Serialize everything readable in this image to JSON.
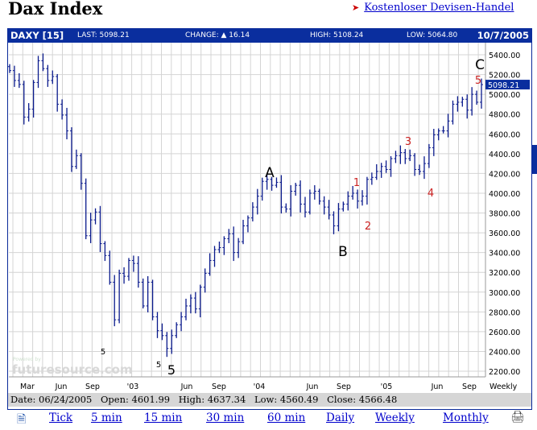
{
  "page": {
    "title": "Dax Index",
    "promo_link": "Kostenloser Devisen-Handel"
  },
  "quote_bar": {
    "symbol": "DAXY [15]",
    "last": "LAST: 5098.21",
    "change": "CHANGE: ▲ 16.14",
    "high": "HIGH: 5108.24",
    "low": "LOW: 5064.80",
    "date": "10/7/2005"
  },
  "info_bar": {
    "date": "Date: 06/24/2005",
    "open": "Open: 4601.99",
    "high": "High: 4637.34",
    "low": "Low: 4560.49",
    "close": "Close: 4566.48"
  },
  "links": [
    "Tick",
    "5 min",
    "15 min",
    "30 min",
    "60 min",
    "Daily",
    "Weekly",
    "Monthly"
  ],
  "icons": {
    "left": "email-page-icon",
    "right": "printer-icon"
  },
  "watermark": "futuresource.com",
  "watermark_small": "Powered by",
  "colors": {
    "bars": "#0a1a8c",
    "header": "#0a2e9e",
    "annotation_red": "#cc2222",
    "grid": "#d4d4d4"
  },
  "chart_data": {
    "type": "ohlc-bar",
    "interval_label": "Weekly",
    "ylim": [
      2200,
      5400
    ],
    "grid": true,
    "y_ticks": [
      "5400.00",
      "5200.00",
      "5000.00",
      "4800.00",
      "4600.00",
      "4400.00",
      "4200.00",
      "4000.00",
      "3800.00",
      "3600.00",
      "3400.00",
      "3200.00",
      "3000.00",
      "2800.00",
      "2600.00",
      "2400.00",
      "2200.00"
    ],
    "x_ticks": [
      "Mar",
      "Jun",
      "Sep",
      "'03",
      "Jun",
      "Sep",
      "'04",
      "Jun",
      "Sep",
      "'05",
      "Jun",
      "Sep"
    ],
    "last_price_label": "5098.21",
    "closes": [
      5240,
      5140,
      5100,
      4770,
      4850,
      5120,
      5340,
      5260,
      5140,
      5180,
      4900,
      4790,
      4630,
      4270,
      4380,
      4100,
      3570,
      3730,
      3810,
      3490,
      3370,
      3100,
      2720,
      3190,
      3160,
      3320,
      3290,
      3100,
      2860,
      3100,
      2750,
      2610,
      2560,
      2430,
      2560,
      2670,
      2750,
      2860,
      2940,
      2830,
      3050,
      3190,
      3320,
      3430,
      3450,
      3540,
      3590,
      3400,
      3510,
      3670,
      3750,
      3860,
      3970,
      4120,
      4140,
      4080,
      4110,
      3860,
      3840,
      4020,
      4080,
      3890,
      3810,
      4000,
      4020,
      3920,
      3860,
      3780,
      3670,
      3840,
      3890,
      3970,
      4000,
      3920,
      3970,
      4140,
      4160,
      4220,
      4270,
      4240,
      4350,
      4380,
      4410,
      4350,
      4380,
      4240,
      4220,
      4300,
      4460,
      4590,
      4630,
      4630,
      4730,
      4900,
      4920,
      4950,
      4840,
      5000,
      4920,
      5098.21
    ],
    "annotations": [
      {
        "text": "A",
        "color": "black"
      },
      {
        "text": "B",
        "color": "black"
      },
      {
        "text": "C",
        "color": "black"
      },
      {
        "text": "1",
        "color": "red"
      },
      {
        "text": "2",
        "color": "red"
      },
      {
        "text": "3",
        "color": "red"
      },
      {
        "text": "4",
        "color": "red"
      },
      {
        "text": "5",
        "color": "red"
      },
      {
        "text": "5",
        "color": "black"
      },
      {
        "text": "5",
        "color": "black"
      },
      {
        "text": "5",
        "color": "black"
      }
    ]
  }
}
